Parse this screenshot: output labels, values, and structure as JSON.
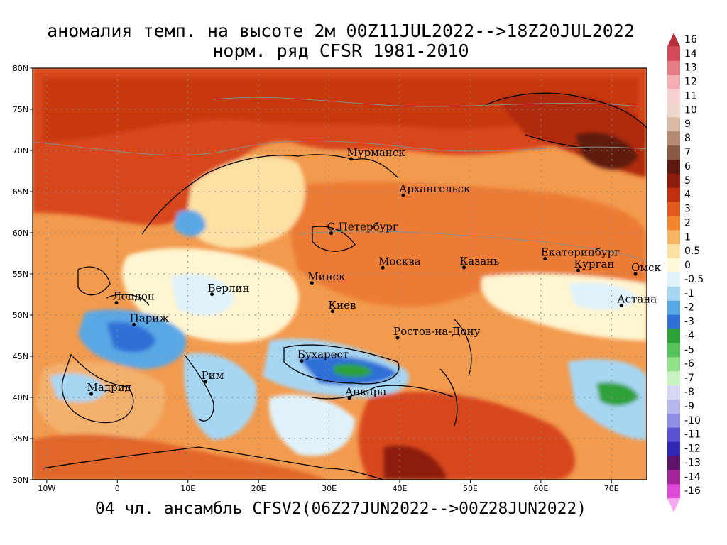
{
  "title": {
    "line1": "аномалия темп. на высоте 2м 00Z11JUL2022-->18Z20JUL2022",
    "line2": "норм. ряд CFSR 1981-2010"
  },
  "subtitle": "04 чл. ансамбль CFSV2(06Z27JUN2022-->00Z28JUN2022)",
  "map": {
    "lon_range": [
      -12,
      75
    ],
    "lat_range": [
      30,
      80
    ],
    "lat_ticks": [
      "80N",
      "75N",
      "70N",
      "65N",
      "60N",
      "55N",
      "50N",
      "45N",
      "40N",
      "35N",
      "30N"
    ],
    "lat_tick_values": [
      80,
      75,
      70,
      65,
      60,
      55,
      50,
      45,
      40,
      35,
      30
    ],
    "lon_ticks": [
      "10W",
      "0",
      "10E",
      "20E",
      "30E",
      "40E",
      "50E",
      "60E",
      "70E"
    ],
    "lon_tick_values": [
      -10,
      0,
      10,
      20,
      30,
      40,
      50,
      60,
      70
    ]
  },
  "cities": [
    {
      "name": "Мурманск",
      "lon": 33.1,
      "lat": 68.97
    },
    {
      "name": "Архангельск",
      "lon": 40.5,
      "lat": 64.55
    },
    {
      "name": "С.Петербург",
      "lon": 30.3,
      "lat": 59.94
    },
    {
      "name": "Москва",
      "lon": 37.6,
      "lat": 55.75
    },
    {
      "name": "Казань",
      "lon": 49.1,
      "lat": 55.79
    },
    {
      "name": "Екатеринбург",
      "lon": 60.6,
      "lat": 56.84
    },
    {
      "name": "Курган",
      "lon": 65.3,
      "lat": 55.44
    },
    {
      "name": "Омск",
      "lon": 73.4,
      "lat": 54.99
    },
    {
      "name": "Астана",
      "lon": 71.4,
      "lat": 51.17
    },
    {
      "name": "Минск",
      "lon": 27.56,
      "lat": 53.9
    },
    {
      "name": "Берлин",
      "lon": 13.4,
      "lat": 52.52
    },
    {
      "name": "Лондон",
      "lon": -0.12,
      "lat": 51.5
    },
    {
      "name": "Париж",
      "lon": 2.35,
      "lat": 48.85
    },
    {
      "name": "Киев",
      "lon": 30.5,
      "lat": 50.45
    },
    {
      "name": "Ростов-на-Дону",
      "lon": 39.7,
      "lat": 47.23
    },
    {
      "name": "Бухарест",
      "lon": 26.1,
      "lat": 44.43
    },
    {
      "name": "Рим",
      "lon": 12.5,
      "lat": 41.9
    },
    {
      "name": "Мадрид",
      "lon": -3.7,
      "lat": 40.42
    },
    {
      "name": "Анкара",
      "lon": 32.85,
      "lat": 39.93
    }
  ],
  "colorbar": {
    "labels": [
      "16",
      "14",
      "13",
      "12",
      "11",
      "10",
      "9",
      "8",
      "7",
      "6",
      "5",
      "4",
      "3",
      "2",
      "1",
      "0.5",
      "0",
      "-0.5",
      "-1",
      "-2",
      "-3",
      "-4",
      "-5",
      "-6",
      "-7",
      "-8",
      "-9",
      "-10",
      "-11",
      "-12",
      "-13",
      "-14",
      "-16"
    ],
    "colors": [
      "#b8303a",
      "#d24a5a",
      "#e77c86",
      "#f3aeb4",
      "#f8d2d2",
      "#efd8cb",
      "#d9b9a4",
      "#b58b72",
      "#8a5a45",
      "#5e1a0e",
      "#8e1c0d",
      "#c0300e",
      "#df5a1c",
      "#f2862e",
      "#f7b564",
      "#fde0a4",
      "#fff9d8",
      "#dff2fb",
      "#a7d6f2",
      "#5aa7e6",
      "#2f6fd6",
      "#2da238",
      "#55c25a",
      "#8fe089",
      "#c6f3c0",
      "#d8d8f6",
      "#b7b7ee",
      "#8e8ee4",
      "#5a52d2",
      "#3028b4",
      "#5e1468",
      "#a4249a",
      "#e14ad8",
      "#f7a8f0"
    ]
  }
}
